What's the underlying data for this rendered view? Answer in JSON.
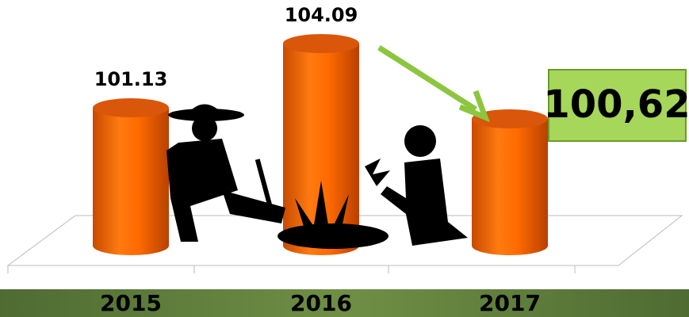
{
  "chart_data": {
    "type": "bar",
    "categories": [
      "2015",
      "2016",
      "2017"
    ],
    "values": [
      101.13,
      104.09,
      100.62
    ],
    "value_labels": [
      "101.13",
      "104.09",
      "100,62"
    ],
    "color": "#ff6a00"
  }
}
